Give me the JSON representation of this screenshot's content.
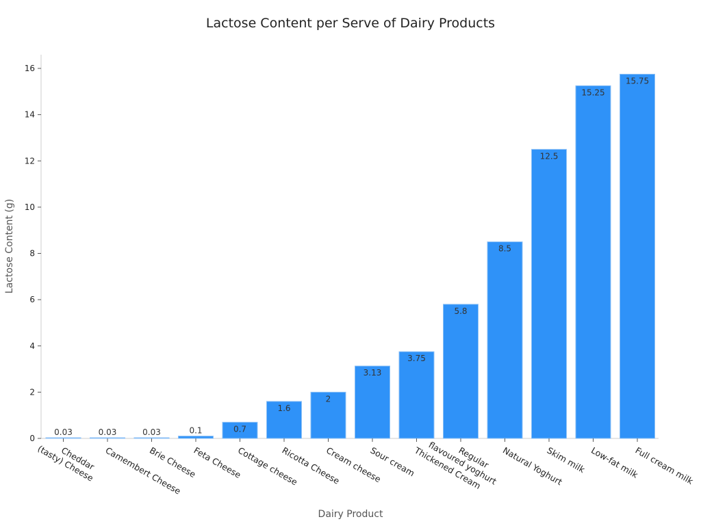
{
  "chart_data": {
    "type": "bar",
    "title": "Lactose Content per Serve of Dairy Products",
    "xlabel": "Dairy Product",
    "ylabel": "Lactose Content (g)",
    "ylim": [
      0,
      16.6
    ],
    "yticks": [
      0,
      2,
      4,
      6,
      8,
      10,
      12,
      14,
      16
    ],
    "grid": false,
    "bar_color": "#2f92f8",
    "categories": [
      "Cheddar\n(tasty) Cheese",
      "Camembert Cheese",
      "Brie Cheese",
      "Feta Cheese",
      "Cottage cheese",
      "Ricotta Cheese",
      "Cream cheese",
      "Sour cream",
      "Thickened Cream",
      "Regular\nflavoured yoghurt",
      "Natural Yoghurt",
      "Skim milk",
      "Low-fat milk",
      "Full cream milk"
    ],
    "values": [
      0.03,
      0.03,
      0.03,
      0.1,
      0.7,
      1.6,
      2.0,
      3.13,
      3.75,
      5.8,
      8.5,
      12.5,
      15.25,
      15.75
    ]
  }
}
